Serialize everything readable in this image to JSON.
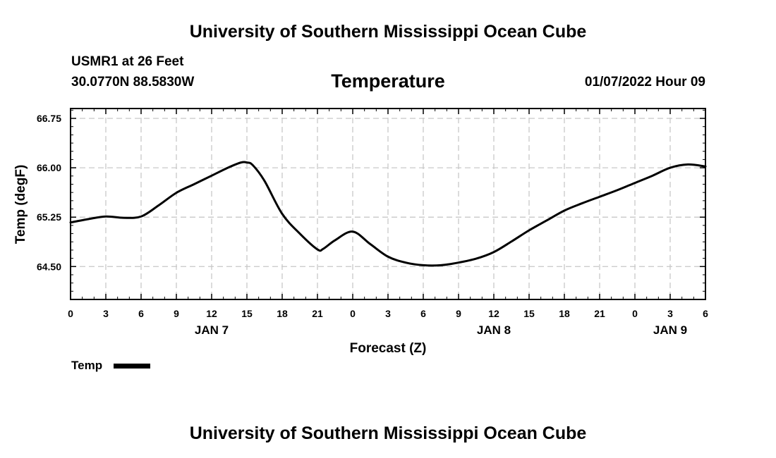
{
  "header": {
    "top_title": "University of Southern Mississippi Ocean Cube",
    "bottom_title": "University of Southern Mississippi Ocean Cube",
    "station_line": "USMR1 at 26 Feet",
    "coords_line": "30.0770N  88.5830W",
    "datetime": "01/07/2022 Hour 09"
  },
  "chart_data": {
    "type": "line",
    "title": "Temperature",
    "xlabel": "Forecast (Z)",
    "ylabel": "Temp (degF)",
    "xlim": [
      0,
      54
    ],
    "ylim": [
      64.0,
      66.9
    ],
    "grid": true,
    "x_ticks": [
      0,
      3,
      6,
      9,
      12,
      15,
      18,
      21,
      24,
      27,
      30,
      33,
      36,
      39,
      42,
      45,
      48,
      51,
      54
    ],
    "x_tick_labels": [
      "0",
      "3",
      "6",
      "9",
      "12",
      "15",
      "18",
      "21",
      "0",
      "3",
      "6",
      "9",
      "12",
      "15",
      "18",
      "21",
      "0",
      "3",
      "6"
    ],
    "y_ticks": [
      64.5,
      65.25,
      66.0,
      66.75
    ],
    "y_tick_labels": [
      "64.50",
      "65.25",
      "66.00",
      "66.75"
    ],
    "day_labels": [
      {
        "x": 12,
        "label": "JAN 7"
      },
      {
        "x": 36,
        "label": "JAN 8"
      },
      {
        "x": 51,
        "label": "JAN 9"
      }
    ],
    "legend_position": "bottom-left",
    "series": [
      {
        "name": "Temp",
        "color": "#000000",
        "x": [
          0,
          1.5,
          3,
          4.5,
          6,
          7.5,
          9,
          10.5,
          12,
          13.5,
          14.5,
          15,
          15.5,
          16.5,
          18,
          19.5,
          21,
          21.5,
          22.5,
          24,
          25.5,
          27,
          28.5,
          30,
          31.5,
          33,
          34.5,
          36,
          37.5,
          39,
          40.5,
          42,
          43.5,
          45,
          46.5,
          48,
          49.5,
          51,
          52.5,
          54
        ],
        "values": [
          65.17,
          65.22,
          65.26,
          65.24,
          65.26,
          65.43,
          65.62,
          65.75,
          65.88,
          66.01,
          66.08,
          66.08,
          66.04,
          65.8,
          65.3,
          65.0,
          64.76,
          64.77,
          64.9,
          65.03,
          64.84,
          64.65,
          64.56,
          64.52,
          64.52,
          64.56,
          64.62,
          64.72,
          64.88,
          65.05,
          65.2,
          65.35,
          65.46,
          65.56,
          65.66,
          65.77,
          65.88,
          66.0,
          66.05,
          66.02
        ]
      }
    ]
  }
}
